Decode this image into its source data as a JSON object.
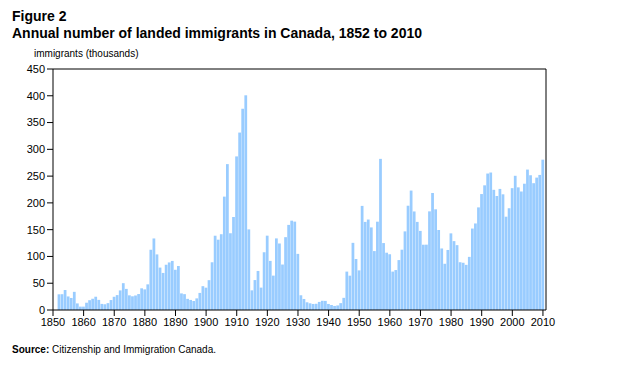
{
  "chart_data": {
    "type": "bar",
    "title": "Figure 2",
    "subtitle": "Annual number of landed immigrants in Canada, 1852 to 2010",
    "ylabel": "immigrants (thousands)",
    "source": "Source: Citizenship and Immigration Canada.",
    "color": "#99ccff",
    "grid": false,
    "x": [
      1852,
      1853,
      1854,
      1855,
      1856,
      1857,
      1858,
      1859,
      1860,
      1861,
      1862,
      1863,
      1864,
      1865,
      1866,
      1867,
      1868,
      1869,
      1870,
      1871,
      1872,
      1873,
      1874,
      1875,
      1876,
      1877,
      1878,
      1879,
      1880,
      1881,
      1882,
      1883,
      1884,
      1885,
      1886,
      1887,
      1888,
      1889,
      1890,
      1891,
      1892,
      1893,
      1894,
      1895,
      1896,
      1897,
      1898,
      1899,
      1900,
      1901,
      1902,
      1903,
      1904,
      1905,
      1906,
      1907,
      1908,
      1909,
      1910,
      1911,
      1912,
      1913,
      1914,
      1915,
      1916,
      1917,
      1918,
      1919,
      1920,
      1921,
      1922,
      1923,
      1924,
      1925,
      1926,
      1927,
      1928,
      1929,
      1930,
      1931,
      1932,
      1933,
      1934,
      1935,
      1936,
      1937,
      1938,
      1939,
      1940,
      1941,
      1942,
      1943,
      1944,
      1945,
      1946,
      1947,
      1948,
      1949,
      1950,
      1951,
      1952,
      1953,
      1954,
      1955,
      1956,
      1957,
      1958,
      1959,
      1960,
      1961,
      1962,
      1963,
      1964,
      1965,
      1966,
      1967,
      1968,
      1969,
      1970,
      1971,
      1972,
      1973,
      1974,
      1975,
      1976,
      1977,
      1978,
      1979,
      1980,
      1981,
      1982,
      1983,
      1984,
      1985,
      1986,
      1987,
      1988,
      1989,
      1990,
      1991,
      1992,
      1993,
      1994,
      1995,
      1996,
      1997,
      1998,
      1999,
      2000,
      2001,
      2002,
      2003,
      2004,
      2005,
      2006,
      2007,
      2008,
      2009,
      2010
    ],
    "values": [
      29.3,
      29.5,
      37.3,
      25.3,
      22.5,
      33.9,
      12.3,
      6.3,
      6.3,
      13.6,
      18.3,
      21.0,
      24.8,
      18.9,
      11.4,
      10.7,
      12.8,
      18.6,
      24.7,
      27.8,
      36.6,
      50.1,
      39.4,
      27.4,
      25.6,
      27.1,
      29.8,
      40.5,
      38.5,
      47.9,
      112.5,
      133.6,
      103.8,
      79.2,
      69.2,
      84.5,
      88.8,
      91.6,
      75.1,
      82.2,
      31.0,
      29.6,
      20.8,
      18.8,
      16.8,
      21.7,
      31.9,
      44.5,
      41.7,
      55.7,
      89.1,
      138.7,
      131.3,
      141.5,
      211.7,
      272.4,
      143.3,
      173.7,
      286.8,
      331.3,
      375.8,
      400.9,
      150.5,
      36.7,
      55.9,
      72.9,
      41.8,
      107.7,
      138.8,
      91.7,
      64.2,
      133.7,
      124.2,
      84.9,
      136.0,
      158.9,
      166.8,
      165.0,
      104.8,
      27.5,
      20.6,
      14.4,
      12.5,
      11.3,
      11.6,
      15.1,
      17.2,
      17.0,
      11.3,
      9.3,
      7.6,
      8.5,
      12.8,
      22.7,
      71.7,
      64.1,
      125.4,
      95.2,
      74.0,
      194.4,
      164.5,
      168.9,
      154.2,
      110.0,
      164.9,
      282.2,
      125.0,
      107.0,
      104.1,
      71.7,
      74.6,
      93.2,
      112.6,
      146.8,
      194.7,
      223.0,
      184.0,
      164.5,
      147.7,
      121.9,
      122.0,
      184.2,
      218.5,
      188.0,
      149.4,
      114.9,
      86.3,
      112.1,
      143.1,
      128.6,
      121.1,
      89.2,
      88.2,
      84.3,
      99.2,
      152.1,
      161.6,
      191.6,
      216.5,
      232.8,
      254.8,
      256.7,
      224.4,
      212.9,
      226.1,
      216.0,
      174.2,
      190.0,
      227.5,
      250.6,
      229.0,
      221.3,
      235.8,
      262.2,
      251.6,
      236.8,
      247.2,
      252.2,
      280.7
    ],
    "xlim": [
      1850,
      2011
    ],
    "xticks": [
      1850,
      1860,
      1870,
      1880,
      1890,
      1900,
      1910,
      1920,
      1930,
      1940,
      1950,
      1960,
      1970,
      1980,
      1990,
      2000,
      2010
    ],
    "ylim": [
      0,
      450
    ],
    "yticks": [
      0,
      50,
      100,
      150,
      200,
      250,
      300,
      350,
      400,
      450
    ]
  }
}
